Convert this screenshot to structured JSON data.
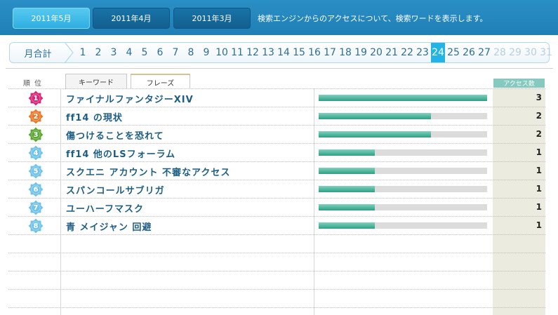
{
  "header": {
    "months": [
      {
        "label": "2011年5月",
        "active": true
      },
      {
        "label": "2011年4月",
        "active": false
      },
      {
        "label": "2011年3月",
        "active": false
      }
    ],
    "description": "検索エンジンからのアクセスについて、検索ワードを表示します。"
  },
  "daynav": {
    "monthly_total_label": "月合計",
    "days": [
      "1",
      "2",
      "3",
      "4",
      "5",
      "6",
      "7",
      "8",
      "9",
      "10",
      "11",
      "12",
      "13",
      "14",
      "15",
      "16",
      "17",
      "18",
      "19",
      "20",
      "21",
      "22",
      "23",
      "24",
      "25",
      "26",
      "27",
      "28",
      "29",
      "30",
      "31"
    ],
    "current_day": "24",
    "last_available_day": 27
  },
  "table": {
    "rank_header": "順位",
    "tabs": [
      {
        "label": "キーワード",
        "active": false
      },
      {
        "label": "フレーズ",
        "active": true
      }
    ],
    "access_header": "アクセス数",
    "max_count": 3,
    "rows": [
      {
        "rank": "1",
        "phrase": "ファイナルファンタジーXIV",
        "count": 3,
        "badge_color": "#d8267a"
      },
      {
        "rank": "2",
        "phrase": "ff14 の現状",
        "count": 2,
        "badge_color": "#e8792a"
      },
      {
        "rank": "3",
        "phrase": "傷つけることを恐れて",
        "count": 2,
        "badge_color": "#5aa832"
      },
      {
        "rank": "4",
        "phrase": "ff14 他のLSフォーラム",
        "count": 1,
        "badge_color": "#6fc3ea"
      },
      {
        "rank": "5",
        "phrase": "スクエニ アカウント 不審なアクセス",
        "count": 1,
        "badge_color": "#6fc3ea"
      },
      {
        "rank": "6",
        "phrase": "スパンコールサブリガ",
        "count": 1,
        "badge_color": "#6fc3ea"
      },
      {
        "rank": "7",
        "phrase": "ユーハーフマスク",
        "count": 1,
        "badge_color": "#6fc3ea"
      },
      {
        "rank": "8",
        "phrase": "青 メイジャン 回避",
        "count": 1,
        "badge_color": "#6fc3ea"
      }
    ]
  }
}
